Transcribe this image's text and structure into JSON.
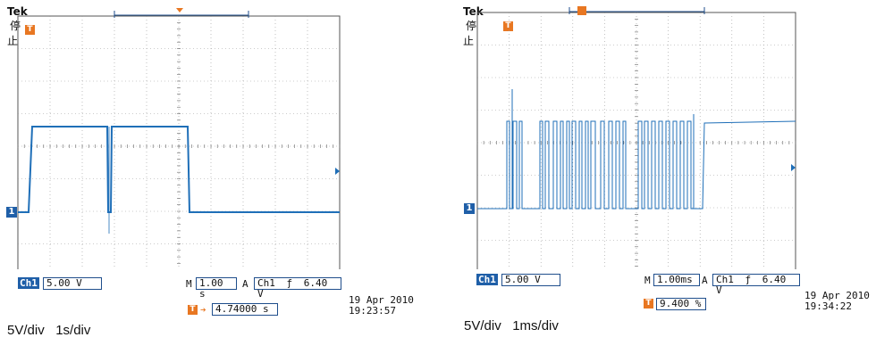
{
  "left": {
    "brand": "Tek",
    "status": "停止",
    "channel_label": "Ch1",
    "volts_div": "5.00 V",
    "time_prefix": "M",
    "time_div": "1.00 s",
    "trigger_prefix": "A",
    "trigger_source": "Ch1",
    "trigger_level": "6.40 V",
    "trigger_offset": "4.74000 s",
    "date": "19 Apr 2010",
    "time": "19:23:57",
    "caption": "5V/div   1s/div",
    "trigger_marker": "T",
    "ground_marker": "1"
  },
  "right": {
    "brand": "Tek",
    "status": "停止",
    "channel_label": "Ch1",
    "volts_div": "5.00 V",
    "time_prefix": "M",
    "time_div": "1.00ms",
    "trigger_prefix": "A",
    "trigger_source": "Ch1",
    "trigger_level": "6.40 V",
    "trigger_offset": "9.400 %",
    "date": "19 Apr 2010",
    "time": "19:34:22",
    "caption": "5V/div   1ms/div",
    "trigger_marker": "T",
    "ground_marker": "1"
  },
  "colors": {
    "trace": "#1f6fb8",
    "grid": "#999999",
    "label_bg": "#1f5fa8",
    "trigger": "#e87722"
  }
}
